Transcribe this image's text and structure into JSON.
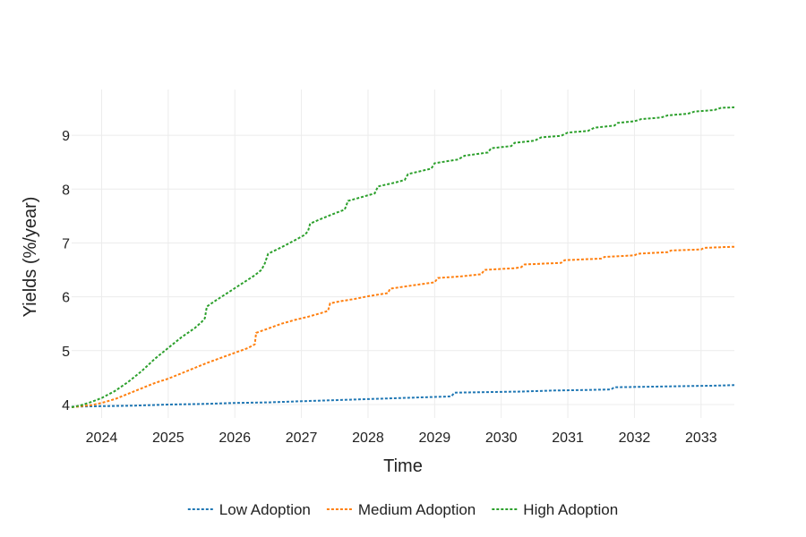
{
  "chart_data": {
    "type": "line",
    "title": "",
    "xlabel": "Time",
    "ylabel": "Yields (%/year)",
    "xlim": [
      2023.55,
      2033.5
    ],
    "ylim": [
      3.75,
      9.85
    ],
    "x_ticks": [
      2024,
      2025,
      2026,
      2027,
      2028,
      2029,
      2030,
      2031,
      2032,
      2033
    ],
    "y_ticks": [
      4,
      5,
      6,
      7,
      8,
      9
    ],
    "grid": true,
    "legend_position": "bottom",
    "series": [
      {
        "name": "Low Adoption",
        "color": "#1f77b4",
        "points": [
          [
            2023.55,
            3.96
          ],
          [
            2024.0,
            3.97
          ],
          [
            2024.5,
            3.98
          ],
          [
            2025.0,
            4.0
          ],
          [
            2025.5,
            4.01
          ],
          [
            2026.0,
            4.03
          ],
          [
            2026.5,
            4.04
          ],
          [
            2027.0,
            4.06
          ],
          [
            2027.5,
            4.08
          ],
          [
            2028.0,
            4.1
          ],
          [
            2028.5,
            4.12
          ],
          [
            2029.0,
            4.14
          ],
          [
            2029.25,
            4.15
          ],
          [
            2029.3,
            4.22
          ],
          [
            2029.8,
            4.23
          ],
          [
            2030.3,
            4.24
          ],
          [
            2030.8,
            4.26
          ],
          [
            2031.3,
            4.27
          ],
          [
            2031.65,
            4.28
          ],
          [
            2031.7,
            4.32
          ],
          [
            2032.2,
            4.33
          ],
          [
            2032.7,
            4.34
          ],
          [
            2033.2,
            4.35
          ],
          [
            2033.5,
            4.36
          ]
        ]
      },
      {
        "name": "Medium Adoption",
        "color": "#ff7f0e",
        "points": [
          [
            2023.55,
            3.95
          ],
          [
            2023.7,
            3.97
          ],
          [
            2023.85,
            3.99
          ],
          [
            2024.0,
            4.03
          ],
          [
            2024.2,
            4.1
          ],
          [
            2024.4,
            4.2
          ],
          [
            2024.6,
            4.3
          ],
          [
            2024.8,
            4.4
          ],
          [
            2025.0,
            4.48
          ],
          [
            2025.2,
            4.58
          ],
          [
            2025.4,
            4.68
          ],
          [
            2025.6,
            4.78
          ],
          [
            2025.8,
            4.87
          ],
          [
            2026.0,
            4.96
          ],
          [
            2026.2,
            5.05
          ],
          [
            2026.3,
            5.12
          ],
          [
            2026.32,
            5.33
          ],
          [
            2026.5,
            5.41
          ],
          [
            2026.7,
            5.5
          ],
          [
            2026.9,
            5.57
          ],
          [
            2027.1,
            5.63
          ],
          [
            2027.3,
            5.7
          ],
          [
            2027.4,
            5.74
          ],
          [
            2027.43,
            5.88
          ],
          [
            2027.6,
            5.92
          ],
          [
            2027.8,
            5.96
          ],
          [
            2028.0,
            6.01
          ],
          [
            2028.2,
            6.05
          ],
          [
            2028.3,
            6.07
          ],
          [
            2028.33,
            6.15
          ],
          [
            2028.6,
            6.2
          ],
          [
            2029.0,
            6.27
          ],
          [
            2029.05,
            6.35
          ],
          [
            2029.4,
            6.38
          ],
          [
            2029.7,
            6.42
          ],
          [
            2029.75,
            6.5
          ],
          [
            2030.2,
            6.53
          ],
          [
            2030.3,
            6.55
          ],
          [
            2030.35,
            6.6
          ],
          [
            2030.9,
            6.63
          ],
          [
            2030.95,
            6.68
          ],
          [
            2031.5,
            6.71
          ],
          [
            2031.55,
            6.74
          ],
          [
            2032.0,
            6.77
          ],
          [
            2032.05,
            6.8
          ],
          [
            2032.5,
            6.83
          ],
          [
            2032.55,
            6.86
          ],
          [
            2033.0,
            6.88
          ],
          [
            2033.05,
            6.91
          ],
          [
            2033.5,
            6.93
          ]
        ]
      },
      {
        "name": "High Adoption",
        "color": "#2ca02c",
        "points": [
          [
            2023.55,
            3.95
          ],
          [
            2023.7,
            3.99
          ],
          [
            2023.85,
            4.05
          ],
          [
            2024.0,
            4.12
          ],
          [
            2024.2,
            4.25
          ],
          [
            2024.4,
            4.42
          ],
          [
            2024.6,
            4.62
          ],
          [
            2024.8,
            4.85
          ],
          [
            2025.0,
            5.05
          ],
          [
            2025.2,
            5.25
          ],
          [
            2025.4,
            5.42
          ],
          [
            2025.5,
            5.53
          ],
          [
            2025.55,
            5.6
          ],
          [
            2025.58,
            5.82
          ],
          [
            2025.7,
            5.92
          ],
          [
            2025.9,
            6.08
          ],
          [
            2026.1,
            6.24
          ],
          [
            2026.3,
            6.4
          ],
          [
            2026.4,
            6.5
          ],
          [
            2026.45,
            6.62
          ],
          [
            2026.5,
            6.8
          ],
          [
            2026.7,
            6.92
          ],
          [
            2026.9,
            7.05
          ],
          [
            2027.05,
            7.15
          ],
          [
            2027.1,
            7.22
          ],
          [
            2027.13,
            7.36
          ],
          [
            2027.3,
            7.45
          ],
          [
            2027.5,
            7.55
          ],
          [
            2027.65,
            7.62
          ],
          [
            2027.7,
            7.78
          ],
          [
            2027.9,
            7.85
          ],
          [
            2028.1,
            7.92
          ],
          [
            2028.15,
            8.05
          ],
          [
            2028.4,
            8.12
          ],
          [
            2028.55,
            8.17
          ],
          [
            2028.6,
            8.28
          ],
          [
            2028.95,
            8.38
          ],
          [
            2029.0,
            8.48
          ],
          [
            2029.35,
            8.55
          ],
          [
            2029.45,
            8.62
          ],
          [
            2029.8,
            8.68
          ],
          [
            2029.85,
            8.76
          ],
          [
            2030.15,
            8.8
          ],
          [
            2030.2,
            8.86
          ],
          [
            2030.5,
            8.9
          ],
          [
            2030.6,
            8.96
          ],
          [
            2030.9,
            8.99
          ],
          [
            2031.0,
            9.05
          ],
          [
            2031.3,
            9.08
          ],
          [
            2031.4,
            9.14
          ],
          [
            2031.7,
            9.18
          ],
          [
            2031.75,
            9.23
          ],
          [
            2032.0,
            9.26
          ],
          [
            2032.1,
            9.3
          ],
          [
            2032.4,
            9.33
          ],
          [
            2032.5,
            9.37
          ],
          [
            2032.8,
            9.4
          ],
          [
            2032.9,
            9.44
          ],
          [
            2033.2,
            9.47
          ],
          [
            2033.3,
            9.51
          ],
          [
            2033.5,
            9.52
          ]
        ]
      }
    ]
  }
}
